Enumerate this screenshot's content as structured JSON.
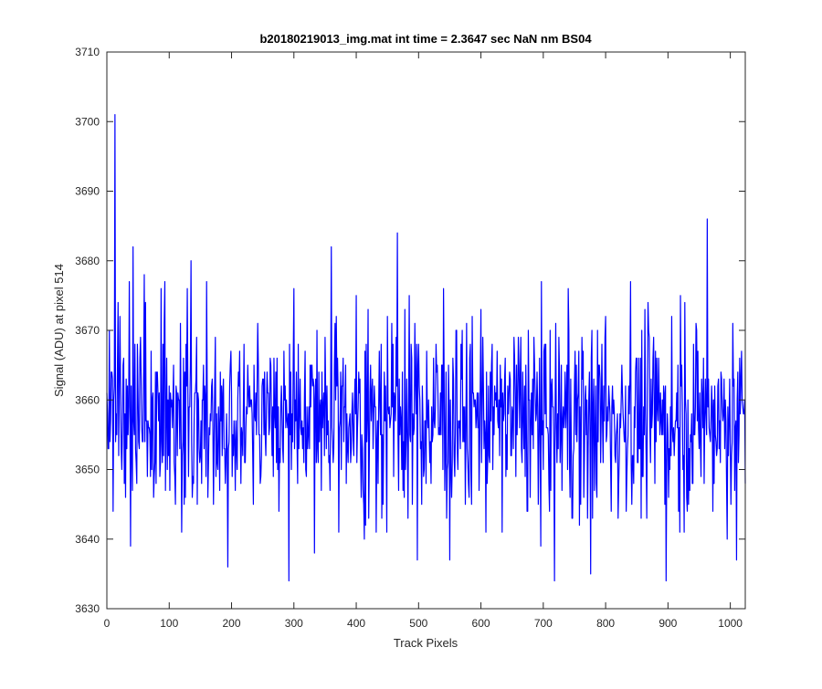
{
  "chart_data": {
    "type": "line",
    "title": "b20180219013_img.mat int time = 2.3647 sec  NaN nm BS04",
    "xlabel": "Track Pixels",
    "ylabel": "Signal (ADU) at pixel 514",
    "xlim": [
      0,
      1024
    ],
    "ylim": [
      3630,
      3710
    ],
    "grid": false,
    "line_color": "#0000ff",
    "x_ticks": [
      0,
      100,
      200,
      300,
      400,
      500,
      600,
      700,
      800,
      900,
      1000
    ],
    "y_ticks": [
      3630,
      3640,
      3650,
      3660,
      3670,
      3680,
      3690,
      3700,
      3710
    ],
    "x_tick_labels": [
      "0",
      "100",
      "200",
      "300",
      "400",
      "500",
      "600",
      "700",
      "800",
      "900",
      "1000"
    ],
    "y_tick_labels": [
      "3630",
      "3640",
      "3650",
      "3660",
      "3670",
      "3680",
      "3690",
      "3700",
      "3710"
    ],
    "series": [
      {
        "x": [
          0,
          10,
          13,
          20,
          30,
          38,
          42,
          50,
          60,
          70,
          90,
          120,
          135,
          150,
          160,
          175,
          194,
          220,
          250,
          272,
          292,
          300,
          320,
          333,
          350,
          360,
          380,
          400,
          420,
          440,
          460,
          466,
          480,
          500,
          520,
          540,
          550,
          560,
          580,
          600,
          630,
          660,
          700,
          718,
          740,
          760,
          776,
          780,
          800,
          820,
          840,
          860,
          880,
          897,
          920,
          940,
          963,
          980,
          1000,
          1010,
          1024
        ],
        "y": [
          3661,
          3644,
          3701,
          3662,
          3646,
          3639,
          3682,
          3661,
          3678,
          3649,
          3668,
          3641,
          3680,
          3652,
          3677,
          3649,
          3636,
          3668,
          3663,
          3651,
          3634,
          3676,
          3649,
          3638,
          3669,
          3682,
          3654,
          3675,
          3643,
          3668,
          3649,
          3684,
          3654,
          3668,
          3648,
          3676,
          3637,
          3670,
          3648,
          3673,
          3652,
          3669,
          3650,
          3634,
          3676,
          3645,
          3635,
          3659,
          3672,
          3643,
          3677,
          3649,
          3667,
          3634,
          3675,
          3648,
          3686,
          3662,
          3653,
          3637,
          3648
        ]
      }
    ]
  }
}
